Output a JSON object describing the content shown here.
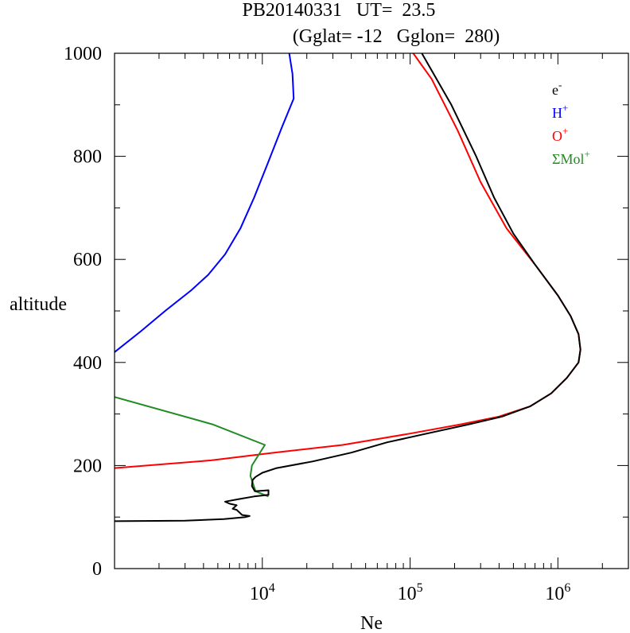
{
  "chart_data": {
    "type": "line",
    "title": "PB20140331   UT=  23.5",
    "subtitle": "(Gglat= -12   Gglon=  280)",
    "xlabel": "Ne",
    "ylabel": "altitude",
    "x_scale": "log",
    "xlim": [
      1000,
      3000000
    ],
    "ylim": [
      0,
      1000
    ],
    "grid": false,
    "legend_position": "top-right",
    "x_ticks": [
      {
        "value": 10000,
        "base": "10",
        "exp": "4"
      },
      {
        "value": 100000,
        "base": "10",
        "exp": "5"
      },
      {
        "value": 1000000,
        "base": "10",
        "exp": "6"
      }
    ],
    "y_ticks": [
      "0",
      "200",
      "400",
      "600",
      "800",
      "1000"
    ],
    "series": [
      {
        "name": "e",
        "name_sup": "-",
        "color": "#000000",
        "points": [
          [
            1000,
            92
          ],
          [
            3000,
            93
          ],
          [
            5500,
            96
          ],
          [
            7700,
            100
          ],
          [
            8200,
            102
          ],
          [
            7300,
            104
          ],
          [
            6700,
            114
          ],
          [
            6300,
            116
          ],
          [
            6700,
            123
          ],
          [
            6000,
            126
          ],
          [
            5600,
            130
          ],
          [
            7000,
            135
          ],
          [
            8800,
            140
          ],
          [
            11000,
            143
          ],
          [
            11000,
            152
          ],
          [
            8900,
            150
          ],
          [
            8500,
            160
          ],
          [
            8600,
            172
          ],
          [
            9000,
            178
          ],
          [
            10000,
            186
          ],
          [
            12500,
            195
          ],
          [
            22000,
            208
          ],
          [
            40000,
            225
          ],
          [
            70000,
            245
          ],
          [
            130000,
            262
          ],
          [
            250000,
            280
          ],
          [
            420000,
            295
          ],
          [
            650000,
            315
          ],
          [
            900000,
            340
          ],
          [
            1150000,
            370
          ],
          [
            1380000,
            400
          ],
          [
            1420000,
            425
          ],
          [
            1380000,
            455
          ],
          [
            1220000,
            490
          ],
          [
            1000000,
            530
          ],
          [
            700000,
            590
          ],
          [
            500000,
            650
          ],
          [
            370000,
            720
          ],
          [
            280000,
            800
          ],
          [
            190000,
            900
          ],
          [
            120000,
            1000
          ]
        ]
      },
      {
        "name": "H",
        "name_sup": "+",
        "color": "#0000ff",
        "points": [
          [
            1000,
            420
          ],
          [
            1500,
            460
          ],
          [
            2200,
            500
          ],
          [
            3300,
            540
          ],
          [
            4300,
            570
          ],
          [
            5600,
            610
          ],
          [
            7100,
            660
          ],
          [
            8800,
            720
          ],
          [
            11000,
            790
          ],
          [
            13500,
            855
          ],
          [
            16300,
            912
          ],
          [
            16000,
            960
          ],
          [
            15200,
            1000
          ]
        ]
      },
      {
        "name": "O",
        "name_sup": "+",
        "color": "#ff0000",
        "points": [
          [
            1000,
            195
          ],
          [
            4500,
            210
          ],
          [
            12000,
            225
          ],
          [
            35000,
            240
          ],
          [
            100000,
            262
          ],
          [
            220000,
            280
          ],
          [
            400000,
            295
          ],
          [
            650000,
            315
          ],
          [
            900000,
            340
          ],
          [
            1150000,
            370
          ],
          [
            1380000,
            400
          ],
          [
            1420000,
            425
          ],
          [
            1380000,
            455
          ],
          [
            1220000,
            490
          ],
          [
            1000000,
            530
          ],
          [
            700000,
            590
          ],
          [
            450000,
            660
          ],
          [
            300000,
            750
          ],
          [
            210000,
            850
          ],
          [
            140000,
            950
          ],
          [
            105000,
            1000
          ]
        ]
      },
      {
        "name": "ΣMol",
        "name_sup": "+",
        "color": "#228b22",
        "points": [
          [
            1000,
            333
          ],
          [
            4600,
            280
          ],
          [
            10400,
            240
          ],
          [
            8500,
            200
          ],
          [
            8300,
            180
          ],
          [
            9000,
            150
          ],
          [
            11000,
            140
          ]
        ]
      }
    ]
  }
}
